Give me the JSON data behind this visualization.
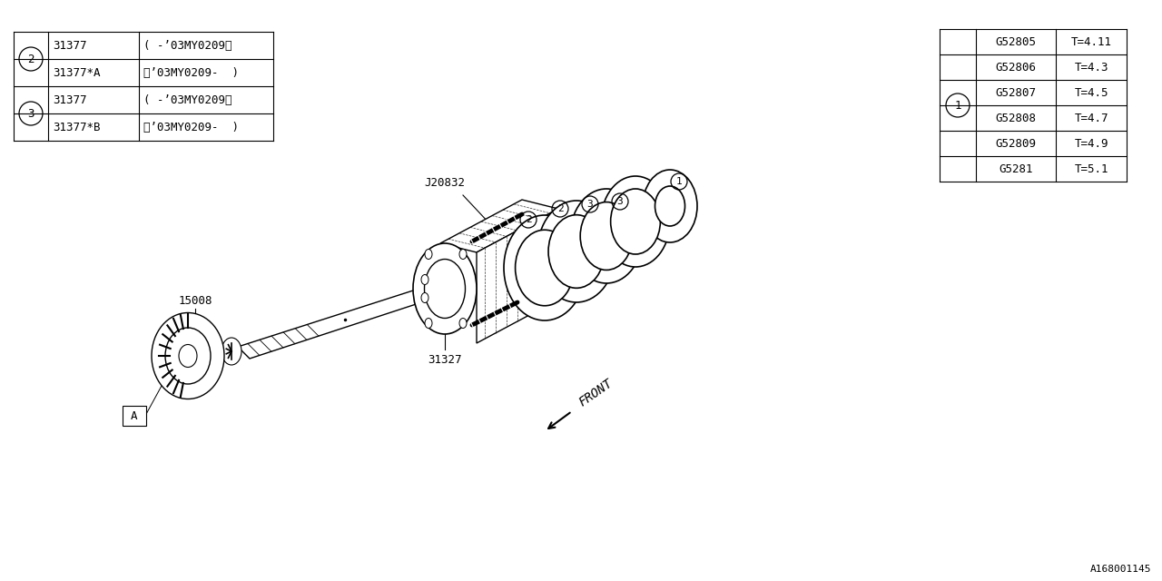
{
  "bg_color": "#ffffff",
  "line_color": "#000000",
  "font_family": "monospace",
  "left_table": {
    "rows": [
      [
        "31377",
        "( -’03MY0209〉"
      ],
      [
        "31377*A",
        "〈’03MY0209-  )"
      ],
      [
        "31377",
        "( -’03MY0209〉"
      ],
      [
        "31377*B",
        "〈’03MY0209-  )"
      ]
    ]
  },
  "right_table": {
    "rows": [
      [
        "G52805",
        "T=4.11"
      ],
      [
        "G52806",
        "T=4.3"
      ],
      [
        "G52807",
        "T=4.5"
      ],
      [
        "G52808",
        "T=4.7"
      ],
      [
        "G52809",
        "T=4.9"
      ],
      [
        "G5281",
        "T=5.1"
      ]
    ]
  },
  "watermark": "A168001145",
  "font_size_table": 9,
  "font_size_label": 9
}
